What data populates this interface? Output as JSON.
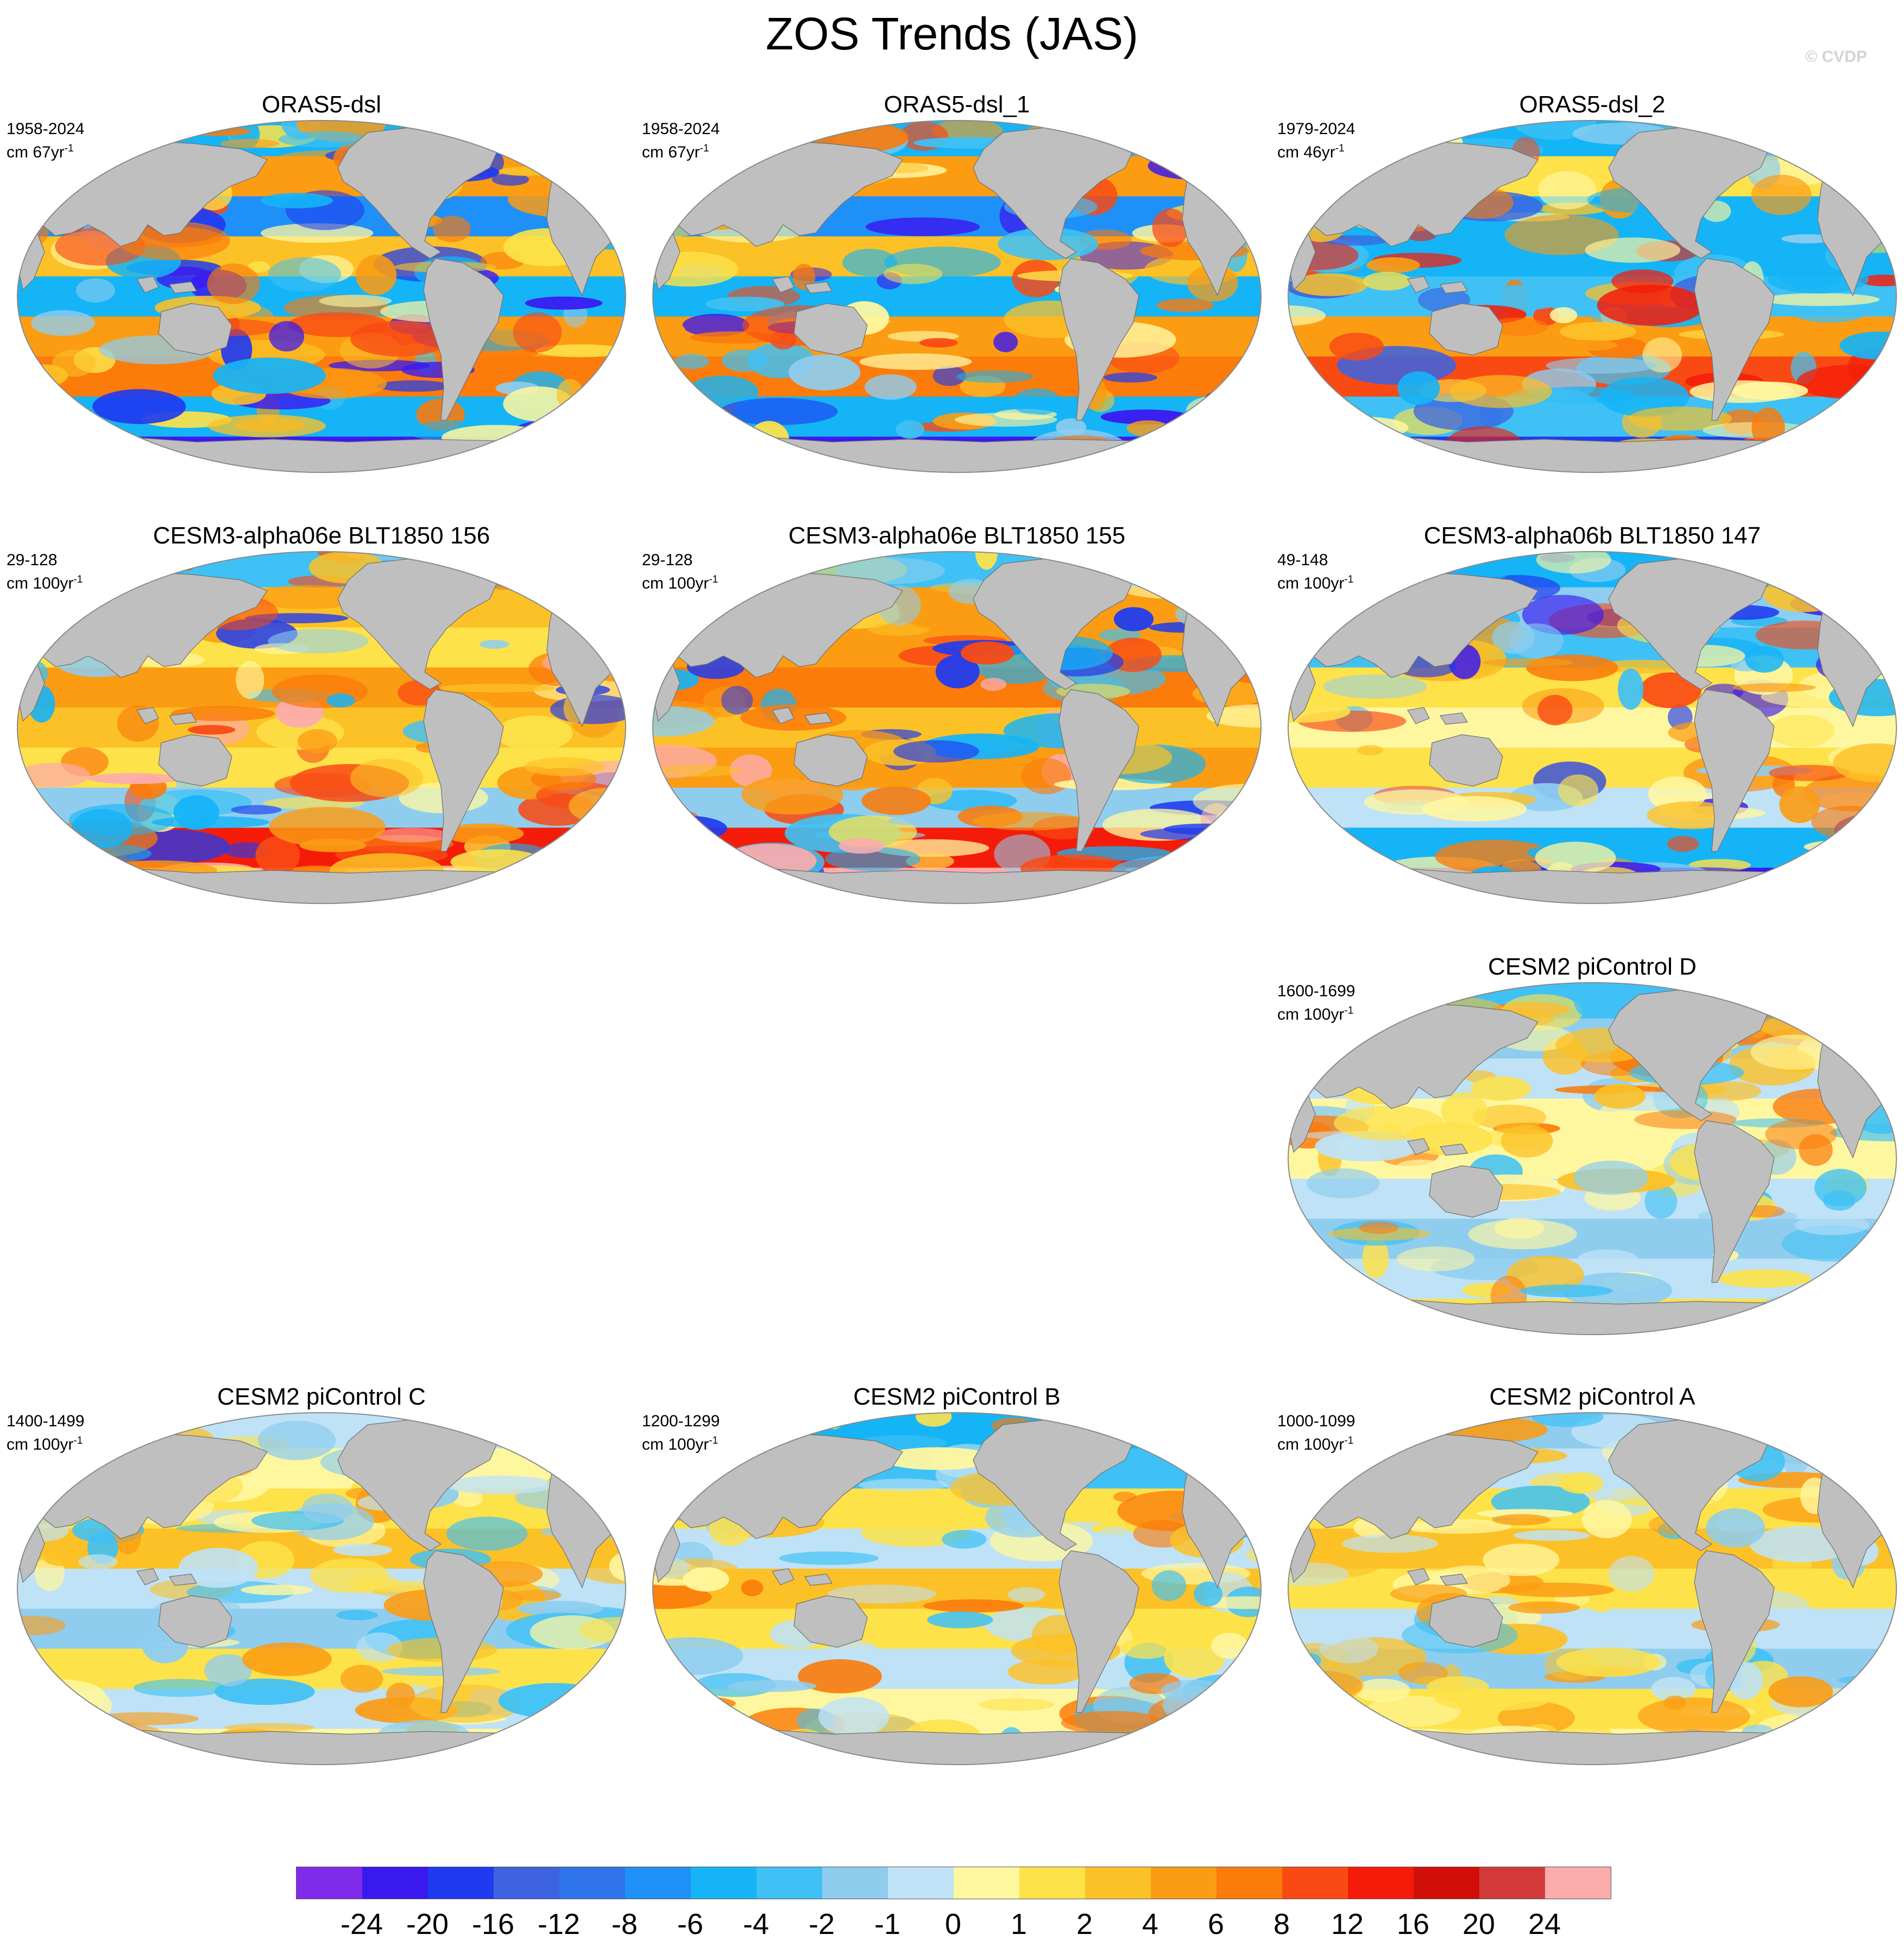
{
  "title": "ZOS Trends (JAS)",
  "watermark": "© CVDP",
  "colors": {
    "land": "#bfbfbf",
    "outline": "#8a8a8a",
    "scale": [
      "#7f2be9",
      "#3a19f0",
      "#1f3bf0",
      "#3d63e0",
      "#2f74ea",
      "#1f90f8",
      "#15b4f7",
      "#3fc1f5",
      "#8fcdef",
      "#bfe2f6",
      "#fff7a0",
      "#fde24a",
      "#fcc126",
      "#fb9c13",
      "#fb7b0b",
      "#f94a14",
      "#f41c08",
      "#d00f08",
      "#d23a3a",
      "#fcacac"
    ]
  },
  "colorbar": {
    "labels": [
      "-24",
      "-20",
      "-16",
      "-12",
      "-8",
      "-6",
      "-4",
      "-2",
      "-1",
      "0",
      "1",
      "2",
      "4",
      "6",
      "8",
      "12",
      "16",
      "20",
      "24"
    ]
  },
  "panels": [
    {
      "id": "orasd",
      "title": "ORAS5-dsl",
      "period": "1958-2024",
      "units": "cm 67yr",
      "exp": "-1",
      "palette": [
        10,
        11,
        12,
        13,
        14,
        15,
        6,
        7,
        8,
        2,
        1
      ],
      "bands": [
        6,
        13,
        5,
        12,
        6,
        13,
        14,
        6,
        1
      ]
    },
    {
      "id": "orasd1",
      "title": "ORAS5-dsl_1",
      "period": "1958-2024",
      "units": "cm 67yr",
      "exp": "-1",
      "palette": [
        10,
        11,
        12,
        13,
        14,
        15,
        6,
        7,
        8,
        2,
        1
      ],
      "bands": [
        6,
        13,
        5,
        12,
        6,
        13,
        14,
        6,
        1
      ]
    },
    {
      "id": "orasd2",
      "title": "ORAS5-dsl_2",
      "period": "1979-2024",
      "units": "cm 46yr",
      "exp": "-1",
      "palette": [
        10,
        11,
        12,
        13,
        14,
        15,
        6,
        7,
        8,
        3,
        16
      ],
      "bands": [
        6,
        11,
        6,
        6,
        7,
        13,
        15,
        7,
        2
      ]
    },
    {
      "id": "cesm156",
      "title": "CESM3-alpha06e BLT1850 156",
      "period": "29-128",
      "units": "cm 100yr",
      "exp": "-1",
      "palette": [
        10,
        11,
        12,
        13,
        14,
        6,
        7,
        8,
        15,
        19,
        2
      ],
      "bands": [
        7,
        12,
        11,
        13,
        12,
        11,
        8,
        16,
        19
      ]
    },
    {
      "id": "cesm155",
      "title": "CESM3-alpha06e BLT1850 155",
      "period": "29-128",
      "units": "cm 100yr",
      "exp": "-1",
      "palette": [
        10,
        11,
        12,
        13,
        14,
        6,
        7,
        8,
        15,
        19,
        2
      ],
      "bands": [
        7,
        13,
        13,
        14,
        12,
        13,
        8,
        16,
        19
      ]
    },
    {
      "id": "cesm147",
      "title": "CESM3-alpha06b BLT1850 147",
      "period": "49-148",
      "units": "cm 100yr",
      "exp": "-1",
      "palette": [
        10,
        11,
        12,
        13,
        14,
        6,
        7,
        8,
        15,
        2,
        1
      ],
      "bands": [
        6,
        8,
        7,
        11,
        10,
        11,
        9,
        6,
        1
      ]
    },
    {
      "id": "picd",
      "title": "CESM2 piControl D",
      "period": "1600-1699",
      "units": "cm 100yr",
      "exp": "-1",
      "palette": [
        10,
        11,
        12,
        8,
        9,
        7,
        14
      ],
      "bands": [
        7,
        8,
        9,
        10,
        10,
        9,
        8,
        9,
        11
      ]
    },
    {
      "id": "picc",
      "title": "CESM2 piControl C",
      "period": "1400-1499",
      "units": "cm 100yr",
      "exp": "-1",
      "palette": [
        10,
        11,
        12,
        8,
        9,
        7,
        13
      ],
      "bands": [
        9,
        10,
        11,
        12,
        9,
        8,
        11,
        9,
        10
      ]
    },
    {
      "id": "picb",
      "title": "CESM2 piControl B",
      "period": "1200-1299",
      "units": "cm 100yr",
      "exp": "-1",
      "palette": [
        10,
        11,
        12,
        8,
        9,
        7,
        14
      ],
      "bands": [
        6,
        7,
        11,
        9,
        12,
        11,
        9,
        10,
        10
      ]
    },
    {
      "id": "pica",
      "title": "CESM2 piControl A",
      "period": "1000-1099",
      "units": "cm 100yr",
      "exp": "-1",
      "palette": [
        10,
        11,
        12,
        8,
        9,
        7,
        13
      ],
      "bands": [
        8,
        9,
        11,
        12,
        11,
        9,
        8,
        11,
        10
      ]
    }
  ]
}
